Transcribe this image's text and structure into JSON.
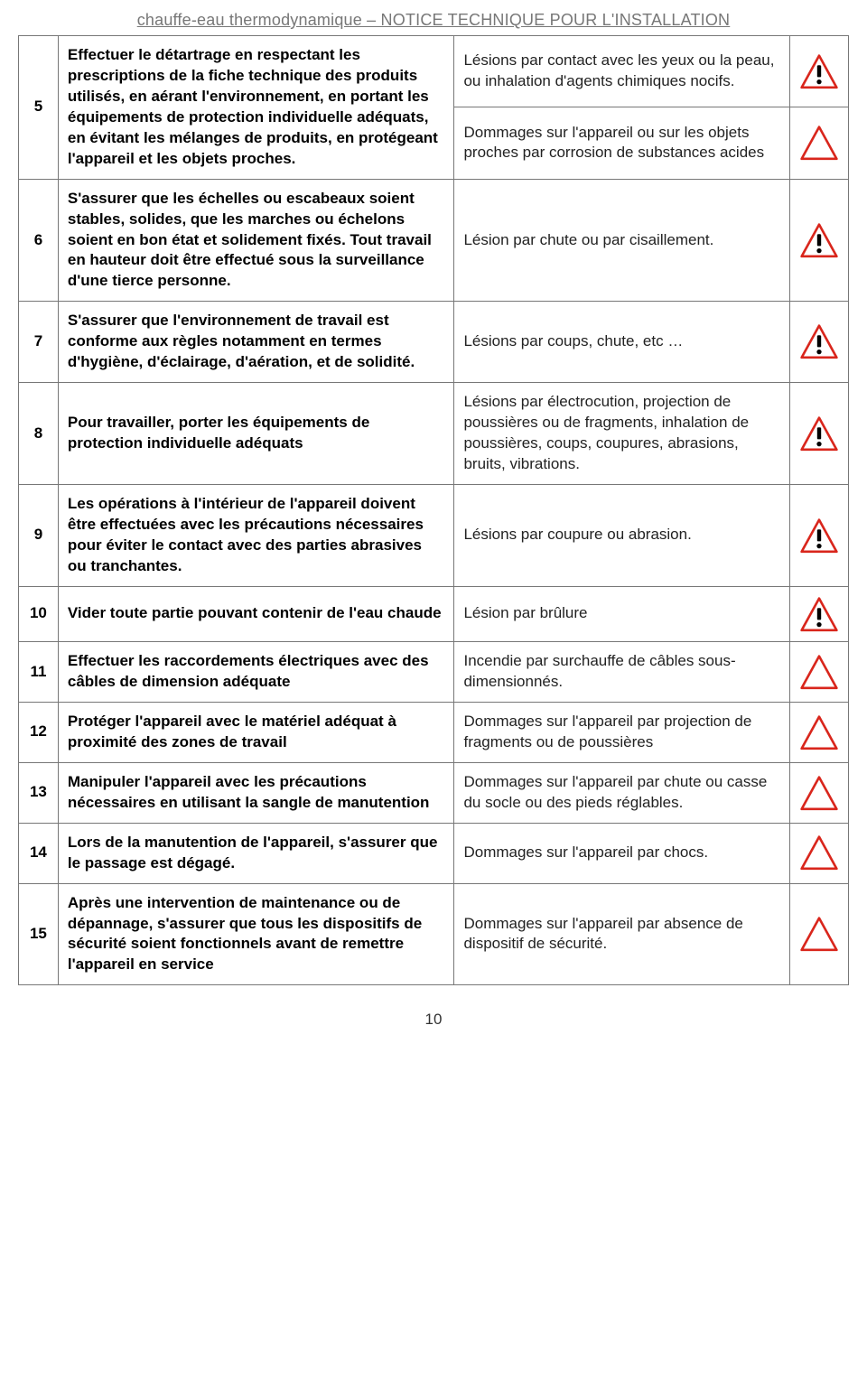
{
  "header": "chauffe-eau thermodynamique – NOTICE TECHNIQUE POUR L'INSTALLATION",
  "page_number": "10",
  "icon": {
    "stroke_color": "#d9261c",
    "stroke_width": 6,
    "bang_color": "#000000",
    "size": 44
  },
  "rows": [
    {
      "num": "5",
      "instruction": "Effectuer le détartrage en respectant les prescriptions de la fiche technique des produits utilisés, en aérant l'environnement, en portant les équipements de protection individuelle adéquats, en évitant les mélanges de produits, en protégeant l'appareil et les objets proches.",
      "risks": [
        {
          "text": "Lésions par contact avec les yeux ou la peau, ou inhalation d'agents chimiques nocifs.",
          "icon": "filled"
        },
        {
          "text": "Dommages sur l'appareil ou sur les objets proches par corrosion de substances acides",
          "icon": "outline"
        }
      ]
    },
    {
      "num": "6",
      "instruction": "S'assurer que les échelles ou escabeaux soient stables, solides, que les marches ou échelons soient en bon état et solidement fixés. Tout travail en hauteur doit être effectué sous la surveillance d'une tierce personne.",
      "risks": [
        {
          "text": "Lésion par chute ou par cisaillement.",
          "icon": "filled"
        }
      ]
    },
    {
      "num": "7",
      "instruction": "S'assurer que l'environnement de travail est conforme aux règles notamment en termes d'hygiène, d'éclairage, d'aération, et de solidité.",
      "risks": [
        {
          "text": "Lésions par coups, chute, etc …",
          "icon": "filled"
        }
      ]
    },
    {
      "num": "8",
      "instruction": "Pour travailler, porter les équipements de protection individuelle adéquats",
      "risks": [
        {
          "text": "Lésions par électrocution, projection de poussières ou de fragments, inhalation de poussières, coups, coupures, abrasions, bruits, vibrations.",
          "icon": "filled"
        }
      ]
    },
    {
      "num": "9",
      "instruction": "Les opérations à l'intérieur de l'appareil doivent être effectuées avec les précautions nécessaires pour éviter le contact avec des parties abrasives ou tranchantes.",
      "risks": [
        {
          "text": "Lésions par coupure ou abrasion.",
          "icon": "filled"
        }
      ]
    },
    {
      "num": "10",
      "instruction": "Vider toute partie pouvant contenir de l'eau chaude",
      "risks": [
        {
          "text": "Lésion par brûlure",
          "icon": "filled"
        }
      ]
    },
    {
      "num": "11",
      "instruction": "Effectuer les raccordements électriques avec des câbles de dimension adéquate",
      "risks": [
        {
          "text": "Incendie par surchauffe de câbles sous-dimensionnés.",
          "icon": "outline"
        }
      ]
    },
    {
      "num": "12",
      "instruction": "Protéger l'appareil avec le matériel adéquat à proximité des zones de travail",
      "risks": [
        {
          "text": "Dommages sur l'appareil par projection de fragments ou de poussières",
          "icon": "outline"
        }
      ]
    },
    {
      "num": "13",
      "instruction": "Manipuler l'appareil avec les précautions nécessaires en utilisant la sangle de manutention",
      "risks": [
        {
          "text": "Dommages sur l'appareil par chute ou casse du socle ou des pieds réglables.",
          "icon": "outline"
        }
      ]
    },
    {
      "num": "14",
      "instruction": "Lors de la manutention de l'appareil, s'assurer que le passage est dégagé.",
      "risks": [
        {
          "text": "Dommages sur l'appareil par chocs.",
          "icon": "outline"
        }
      ]
    },
    {
      "num": "15",
      "instruction": "Après une intervention de maintenance ou de dépannage, s'assurer que tous les dispositifs de sécurité soient fonctionnels avant de remettre l'appareil en service",
      "risks": [
        {
          "text": "Dommages sur l'appareil par absence de dispositif de sécurité.",
          "icon": "outline"
        }
      ]
    }
  ]
}
